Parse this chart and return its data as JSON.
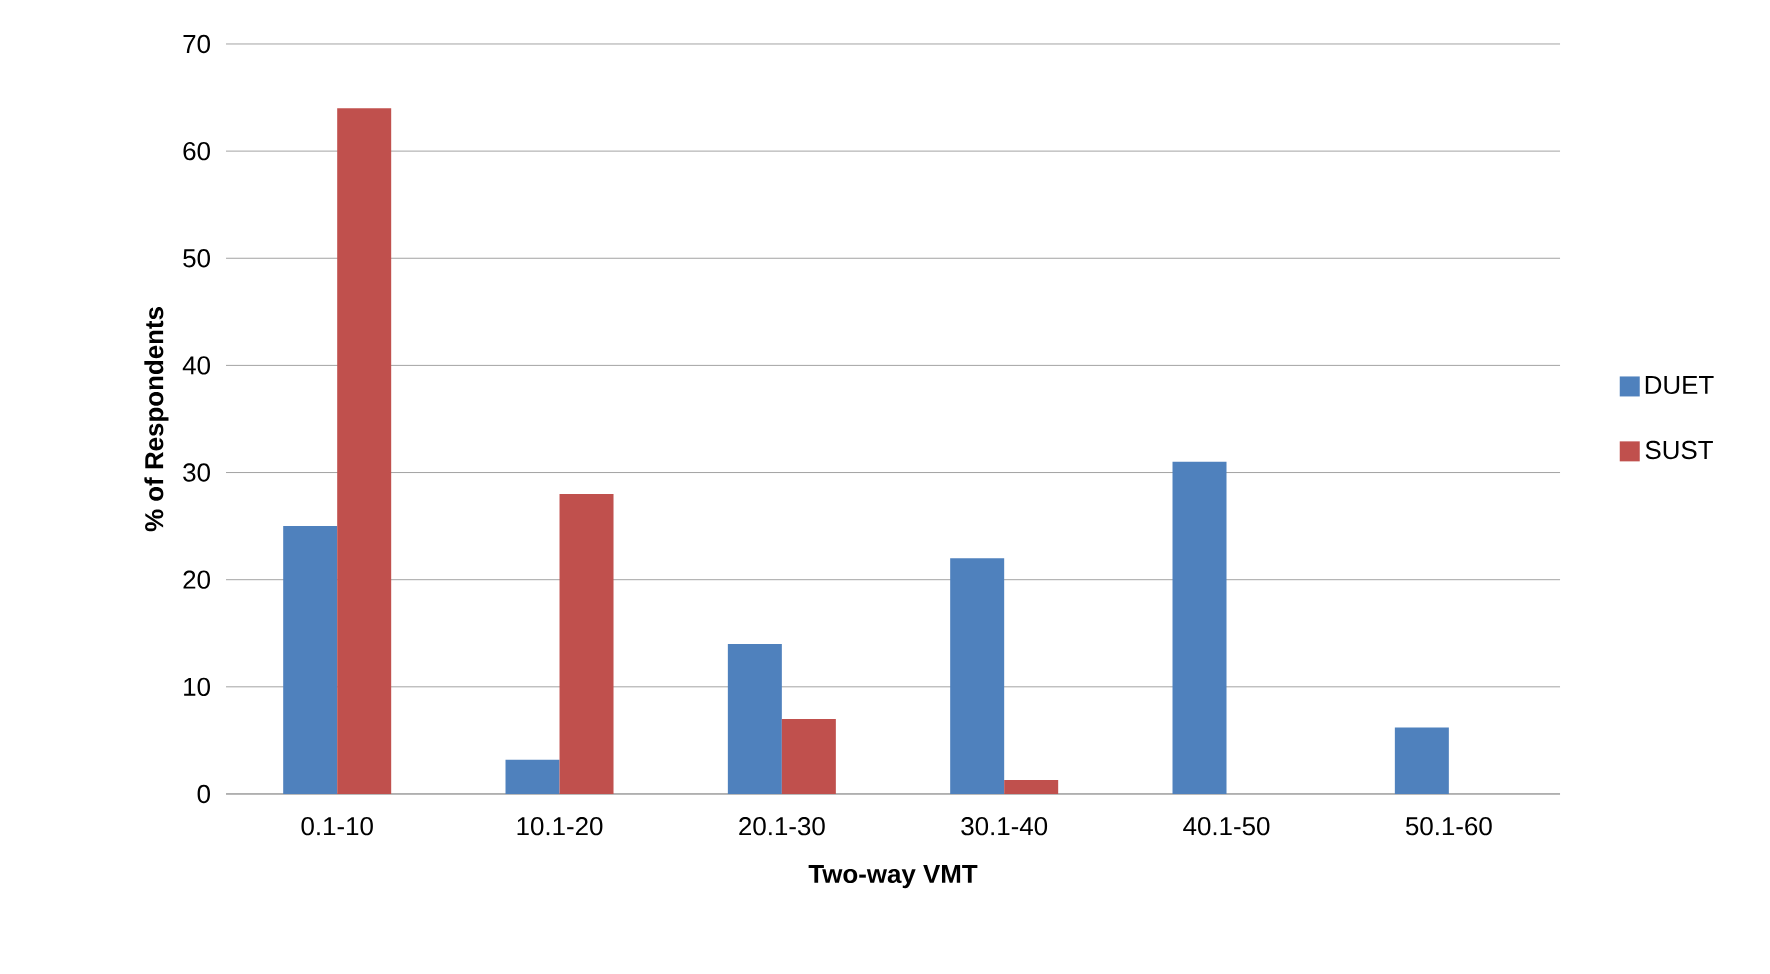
{
  "chart_data": {
    "type": "bar",
    "xlabel": "Two-way VMT",
    "ylabel": "% of Respondents",
    "categories": [
      "0.1-10",
      "10.1-20",
      "20.1-30",
      "30.1-40",
      "40.1-50",
      "50.1-60"
    ],
    "series": [
      {
        "name": "DUET",
        "color": "#4f81bd",
        "values": [
          25,
          3.2,
          14,
          22,
          31,
          6.2
        ]
      },
      {
        "name": "SUST",
        "color": "#c0504d",
        "values": [
          64,
          28,
          7,
          1.3,
          null,
          null
        ]
      }
    ],
    "ylim": [
      0,
      70
    ],
    "yticks": [
      0,
      10,
      20,
      30,
      40,
      50,
      60,
      70
    ],
    "grid": "y",
    "legend": "right"
  }
}
